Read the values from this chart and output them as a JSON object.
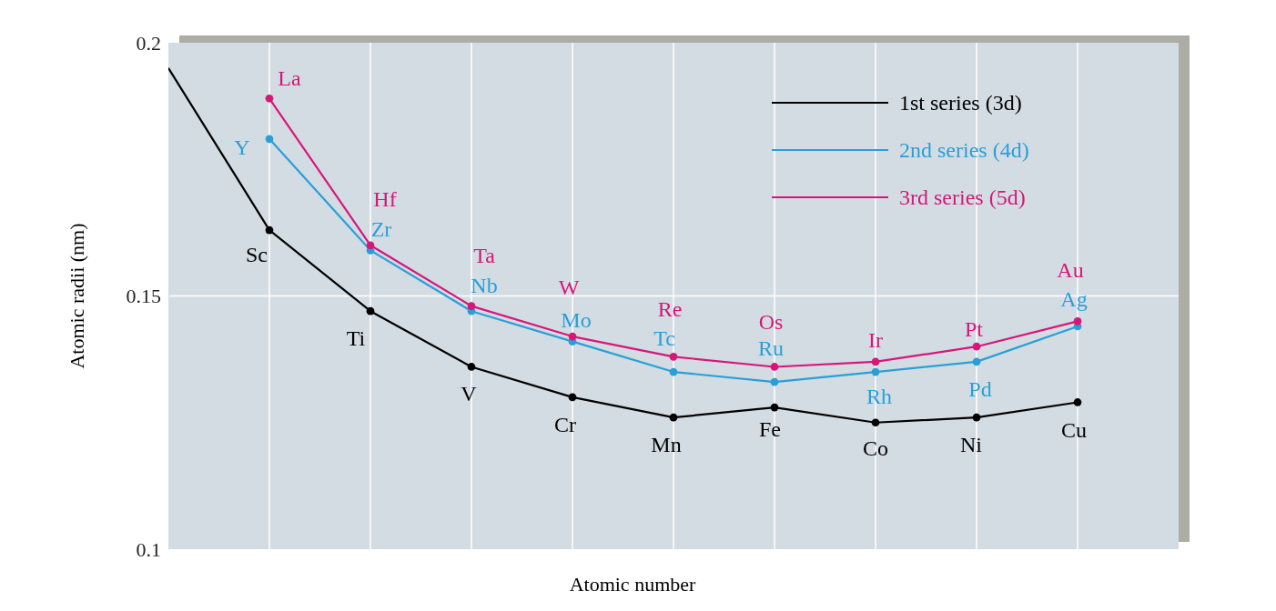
{
  "chart_data": {
    "type": "line",
    "xlabel": "Atomic number",
    "ylabel": "Atomic radii (nm)",
    "categories": [
      null,
      null,
      null,
      null,
      null,
      null,
      null,
      null,
      null,
      null,
      null
    ],
    "series": [
      {
        "name": "1st series (3d)",
        "color": "#000000",
        "values": [
          0.195,
          0.163,
          0.147,
          0.136,
          0.13,
          0.126,
          0.128,
          0.125,
          0.126,
          0.129,
          null
        ]
      },
      {
        "name": "2nd series (4d)",
        "color": "#2a9fd6",
        "values": [
          null,
          0.181,
          0.159,
          0.147,
          0.141,
          0.135,
          0.133,
          0.135,
          0.137,
          0.144,
          null
        ]
      },
      {
        "name": "3rd series (5d)",
        "color": "#d6177a",
        "values": [
          null,
          0.189,
          0.16,
          0.148,
          0.142,
          0.138,
          0.136,
          0.137,
          0.14,
          0.145,
          null
        ]
      }
    ],
    "ylim": [
      0.1,
      0.2
    ],
    "yticks": [
      0.1,
      0.15,
      0.2
    ],
    "grid": true,
    "legend": "top right",
    "marker": "circle",
    "line_style": "solid",
    "annotations": [
      "Sc",
      "Ti",
      "V",
      "Cr",
      "Mn",
      "Fe",
      "Co",
      "Ni",
      "Cu",
      "Y",
      "Zr",
      "Nb",
      "Mo",
      "Tc",
      "Ru",
      "Rh",
      "Pd",
      "Ag",
      "La",
      "Hf",
      "Ta",
      "W",
      "Re",
      "Os",
      "Ir",
      "Pt",
      "Au"
    ]
  }
}
